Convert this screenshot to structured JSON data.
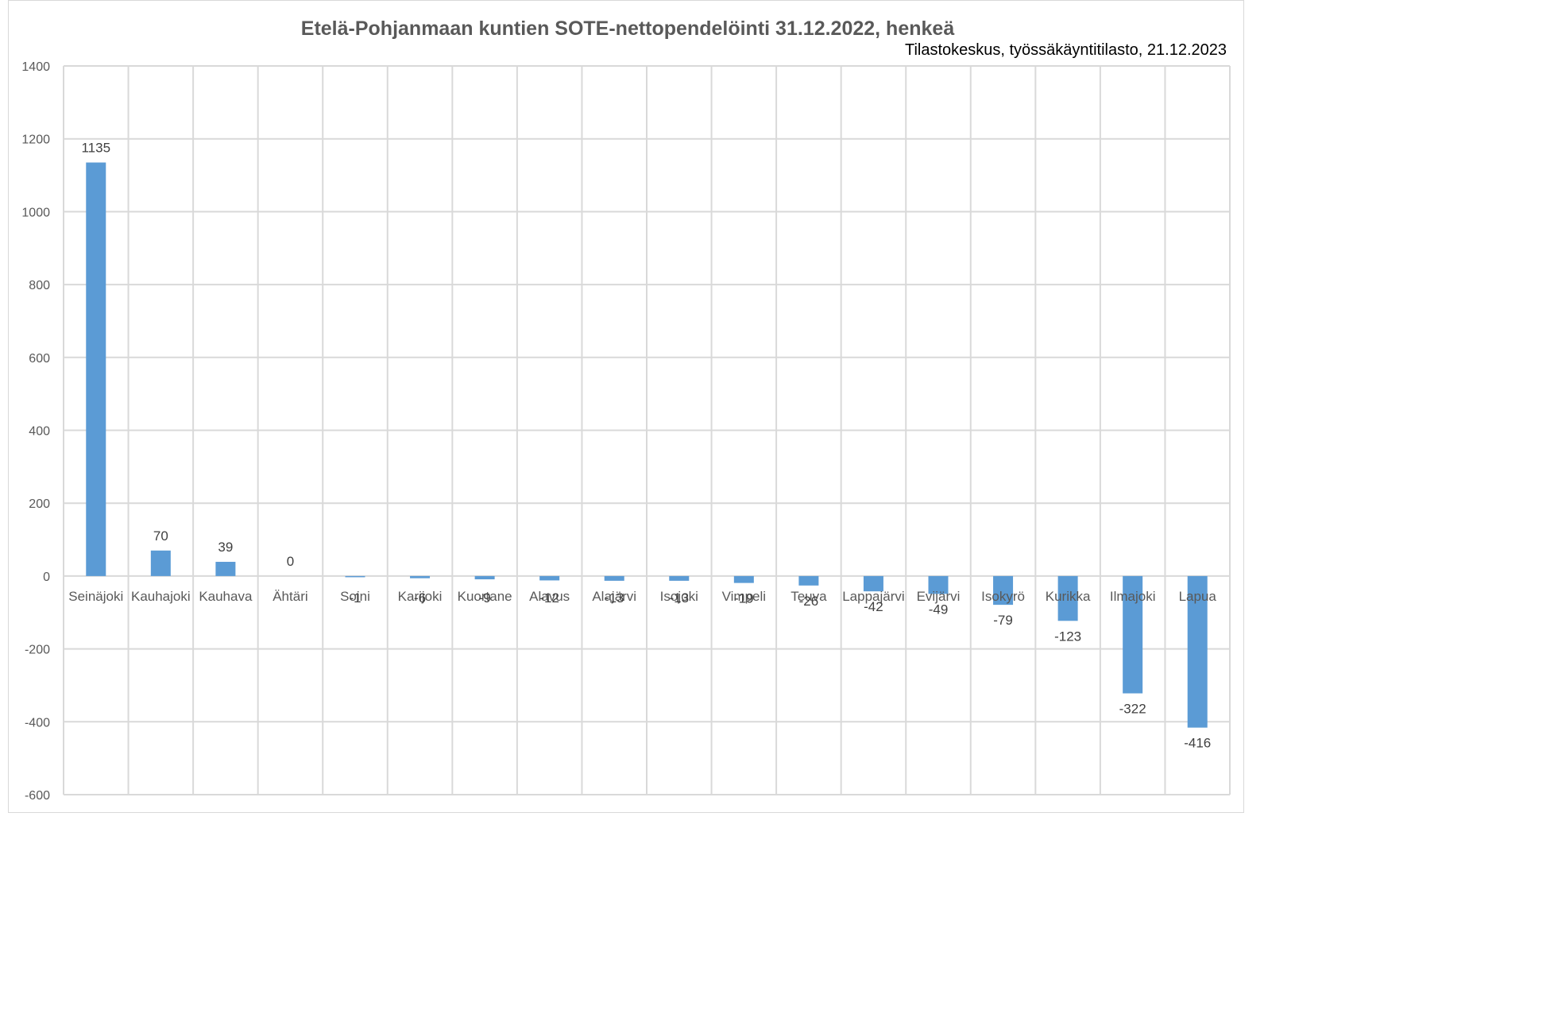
{
  "chart_data": {
    "type": "bar",
    "title": "Etelä-Pohjanmaan kuntien SOTE-nettopendelöinti 31.12.2022, henkeä",
    "subtitle": "Tilastokeskus, työssäkäyntitilasto, 21.12.2023",
    "categories": [
      "Seinäjoki",
      "Kauhajoki",
      "Kauhava",
      "Ähtäri",
      "Soini",
      "Karijoki",
      "Kuortane",
      "Alavus",
      "Alajärvi",
      "Isojoki",
      "Vimpeli",
      "Teuva",
      "Lappajärvi",
      "Evijärvi",
      "Isokyrö",
      "Kurikka",
      "Ilmajoki",
      "Lapua"
    ],
    "values": [
      1135,
      70,
      39,
      0,
      -1,
      -6,
      -9,
      -12,
      -13,
      -13,
      -19,
      -26,
      -42,
      -49,
      -79,
      -123,
      -322,
      -416
    ],
    "data_labels": [
      "1135",
      "70",
      "39",
      "0",
      "-1",
      "-6",
      "-9",
      "-12",
      "-13",
      "-13",
      "-19",
      "-26",
      "-42",
      "-49",
      "-79",
      "-123",
      "-322",
      "-416"
    ],
    "ylim": [
      -600,
      1400
    ],
    "yticks": [
      "1400",
      "1200",
      "1000",
      "800",
      "600",
      "400",
      "200",
      "0",
      "-200",
      "-400",
      "-600"
    ],
    "grid": true,
    "bar_color": "#5b9bd5",
    "grid_color": "#d9d9d9"
  }
}
